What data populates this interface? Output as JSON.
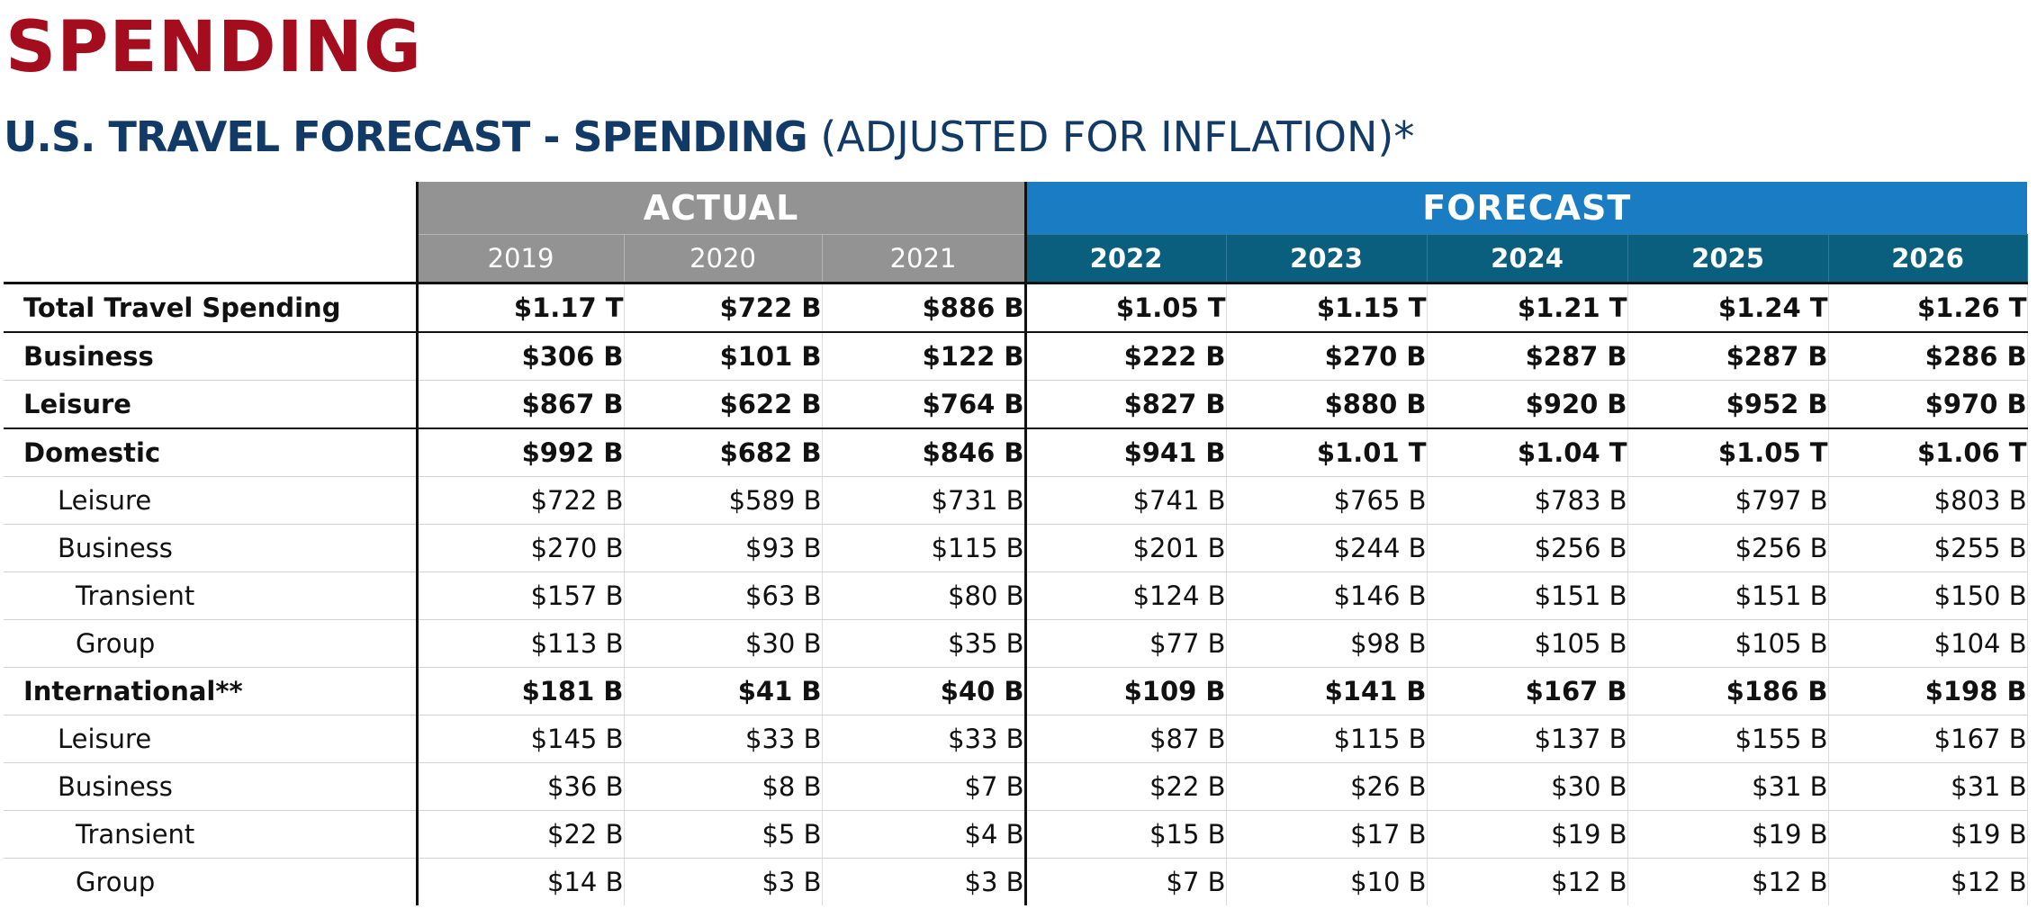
{
  "heading": "SPENDING",
  "subtitle": {
    "bold": "U.S. TRAVEL FORECAST - SPENDING",
    "light": " (ADJUSTED FOR INFLATION)*"
  },
  "chart_data": {
    "type": "table",
    "title": "U.S. TRAVEL FORECAST - SPENDING (ADJUSTED FOR INFLATION)*",
    "groups": [
      {
        "label": "ACTUAL",
        "years": [
          "2019",
          "2020",
          "2021"
        ]
      },
      {
        "label": "FORECAST",
        "years": [
          "2022",
          "2023",
          "2024",
          "2025",
          "2026"
        ]
      }
    ],
    "rows": [
      {
        "label": "Total Travel Spending",
        "level": 0,
        "bold": true,
        "values": [
          "$1.17 T",
          "$722 B",
          "$886 B",
          "$1.05 T",
          "$1.15 T",
          "$1.21 T",
          "$1.24 T",
          "$1.26 T"
        ]
      },
      {
        "label": "Business",
        "level": 0,
        "bold": true,
        "values": [
          "$306 B",
          "$101 B",
          "$122 B",
          "$222 B",
          "$270 B",
          "$287 B",
          "$287 B",
          "$286 B"
        ]
      },
      {
        "label": "Leisure",
        "level": 0,
        "bold": true,
        "values": [
          "$867 B",
          "$622 B",
          "$764 B",
          "$827 B",
          "$880 B",
          "$920 B",
          "$952 B",
          "$970 B"
        ]
      },
      {
        "label": "Domestic",
        "level": 0,
        "bold": true,
        "values": [
          "$992 B",
          "$682 B",
          "$846 B",
          "$941 B",
          "$1.01 T",
          "$1.04 T",
          "$1.05 T",
          "$1.06 T"
        ]
      },
      {
        "label": "Leisure",
        "level": 1,
        "bold": false,
        "values": [
          "$722 B",
          "$589 B",
          "$731 B",
          "$741 B",
          "$765 B",
          "$783 B",
          "$797 B",
          "$803 B"
        ]
      },
      {
        "label": "Business",
        "level": 1,
        "bold": false,
        "values": [
          "$270 B",
          "$93 B",
          "$115 B",
          "$201 B",
          "$244 B",
          "$256 B",
          "$256 B",
          "$255 B"
        ]
      },
      {
        "label": "Transient",
        "level": 2,
        "bold": false,
        "values": [
          "$157 B",
          "$63 B",
          "$80 B",
          "$124 B",
          "$146 B",
          "$151 B",
          "$151 B",
          "$150 B"
        ]
      },
      {
        "label": "Group",
        "level": 2,
        "bold": false,
        "values": [
          "$113 B",
          "$30 B",
          "$35 B",
          "$77 B",
          "$98 B",
          "$105 B",
          "$105 B",
          "$104 B"
        ]
      },
      {
        "label": "International**",
        "level": 0,
        "bold": true,
        "values": [
          "$181 B",
          "$41 B",
          "$40 B",
          "$109 B",
          "$141 B",
          "$167 B",
          "$186 B",
          "$198 B"
        ]
      },
      {
        "label": "Leisure",
        "level": 1,
        "bold": false,
        "values": [
          "$145 B",
          "$33 B",
          "$33 B",
          "$87 B",
          "$115 B",
          "$137 B",
          "$155 B",
          "$167 B"
        ]
      },
      {
        "label": "Business",
        "level": 1,
        "bold": false,
        "values": [
          "$36 B",
          "$8 B",
          "$7 B",
          "$22 B",
          "$26 B",
          "$30 B",
          "$31 B",
          "$31 B"
        ]
      },
      {
        "label": "Transient",
        "level": 2,
        "bold": false,
        "values": [
          "$22 B",
          "$5 B",
          "$4 B",
          "$15 B",
          "$17 B",
          "$19 B",
          "$19 B",
          "$19 B"
        ]
      },
      {
        "label": "Group",
        "level": 2,
        "bold": false,
        "values": [
          "$14 B",
          "$3 B",
          "$3 B",
          "$7 B",
          "$10 B",
          "$12 B",
          "$12 B",
          "$12 B"
        ]
      }
    ],
    "colors": {
      "heading": "#a30d1e",
      "subtitle": "#123a66",
      "actual_header": "#939393",
      "forecast_header": "#1a7dc4",
      "forecast_year_header": "#0b5f7e"
    }
  }
}
